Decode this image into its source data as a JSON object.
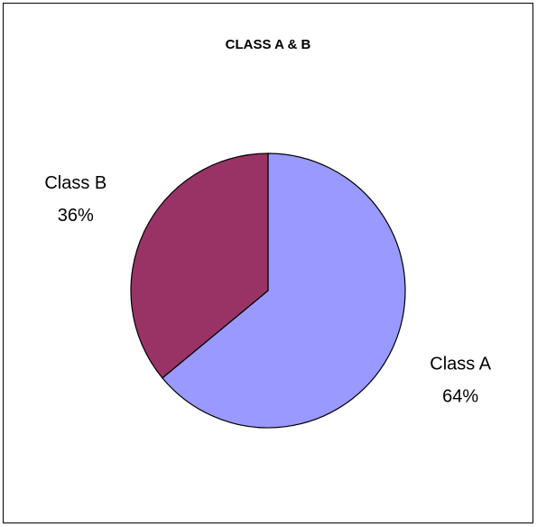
{
  "chart_data": {
    "type": "pie",
    "title": "CLASS A & B",
    "categories": [
      "Class A",
      "Class B"
    ],
    "values": [
      64,
      36
    ],
    "value_labels": [
      "64%",
      "36%"
    ],
    "colors": [
      "#9999ff",
      "#993366"
    ]
  }
}
